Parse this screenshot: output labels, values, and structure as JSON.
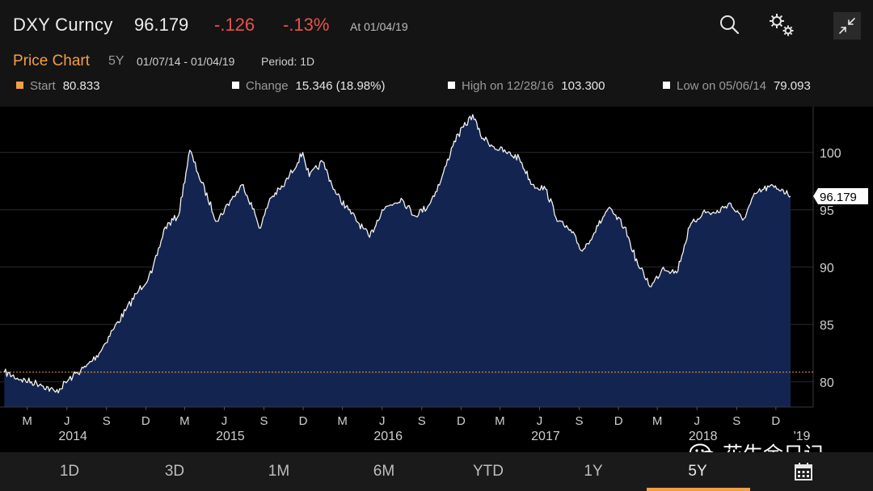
{
  "header": {
    "ticker": "DXY Curncy",
    "last": "96.179",
    "change": "-.126",
    "change_pct": "-.13%",
    "as_of": "At 01/04/19"
  },
  "info": {
    "title": "Price Chart",
    "range": "5Y",
    "dates": "01/07/14 - 01/04/19",
    "period": "Period: 1D",
    "stats": [
      {
        "label": "Start",
        "value": "80.833",
        "color": "#f0a045"
      },
      {
        "label": "Change",
        "value": "15.346 (18.98%)",
        "color": "#ffffff"
      },
      {
        "label": "High on 12/28/16",
        "value": "103.300",
        "color": "#ffffff"
      },
      {
        "label": "Low on 05/06/14",
        "value": "79.093",
        "color": "#ffffff"
      }
    ]
  },
  "chart_data": {
    "type": "area",
    "y_ticks": [
      80,
      85,
      90,
      95,
      100
    ],
    "ylim": [
      77.8,
      104.0
    ],
    "x_month_ticks": [
      "M",
      "J",
      "S",
      "D",
      "M",
      "J",
      "S",
      "D",
      "M",
      "J",
      "S",
      "D",
      "M",
      "J",
      "S",
      "D",
      "M",
      "J",
      "S",
      "D"
    ],
    "x_year_labels": [
      "2014",
      "2015",
      "2016",
      "2017",
      "2018",
      "'19"
    ],
    "start_value": 80.833,
    "last_label": "96.179",
    "series": [
      {
        "x": [
          "2014-01-07",
          "2014-02-15",
          "2014-04-01",
          "2014-05-06",
          "2014-06-15",
          "2014-07-15",
          "2014-08-15",
          "2014-09-15",
          "2014-10-15",
          "2014-11-15",
          "2014-12-15",
          "2015-01-15",
          "2015-02-15",
          "2015-03-13",
          "2015-04-01",
          "2015-05-15",
          "2015-06-15",
          "2015-07-15",
          "2015-08-24",
          "2015-09-15",
          "2015-10-15",
          "2015-11-30",
          "2015-12-15",
          "2016-01-15",
          "2016-02-15",
          "2016-03-15",
          "2016-05-03",
          "2016-06-01",
          "2016-07-15",
          "2016-08-15",
          "2016-09-15",
          "2016-10-15",
          "2016-11-15",
          "2016-12-28",
          "2017-01-15",
          "2017-02-15",
          "2017-03-15",
          "2017-04-15",
          "2017-05-15",
          "2017-06-15",
          "2017-07-15",
          "2017-08-15",
          "2017-09-08",
          "2017-10-15",
          "2017-11-07",
          "2017-12-15",
          "2018-01-15",
          "2018-02-15",
          "2018-03-15",
          "2018-04-15",
          "2018-05-15",
          "2018-06-15",
          "2018-07-15",
          "2018-08-15",
          "2018-09-15",
          "2018-10-15",
          "2018-11-15",
          "2018-12-15",
          "2019-01-04"
        ],
        "values": [
          80.833,
          80.2,
          79.8,
          79.093,
          80.5,
          81.3,
          82.5,
          84.5,
          86.2,
          88.0,
          89.5,
          93.5,
          94.5,
          100.2,
          98.2,
          94.0,
          95.8,
          97.2,
          93.4,
          96.0,
          97.0,
          100.0,
          97.9,
          99.2,
          96.4,
          95.0,
          92.6,
          95.0,
          96.0,
          94.5,
          95.3,
          97.5,
          101.0,
          103.3,
          101.5,
          100.5,
          100.0,
          99.5,
          97.2,
          96.8,
          94.0,
          93.0,
          91.4,
          93.6,
          95.1,
          93.5,
          90.2,
          88.3,
          90.0,
          89.5,
          93.5,
          94.8,
          94.7,
          95.6,
          94.1,
          96.4,
          97.0,
          96.8,
          96.179
        ]
      }
    ]
  },
  "periods": [
    {
      "label": "1D",
      "active": false
    },
    {
      "label": "3D",
      "active": false
    },
    {
      "label": "1M",
      "active": false
    },
    {
      "label": "6M",
      "active": false
    },
    {
      "label": "YTD",
      "active": false
    },
    {
      "label": "1Y",
      "active": false
    },
    {
      "label": "5Y",
      "active": true
    }
  ],
  "watermark": "花生余日记",
  "colors": {
    "negative": "#e8524a",
    "accent": "#f0a045",
    "area": "#142450"
  },
  "icons": [
    "search-icon",
    "gear-icon",
    "collapse-icon",
    "calendar-icon",
    "wechat-icon"
  ]
}
